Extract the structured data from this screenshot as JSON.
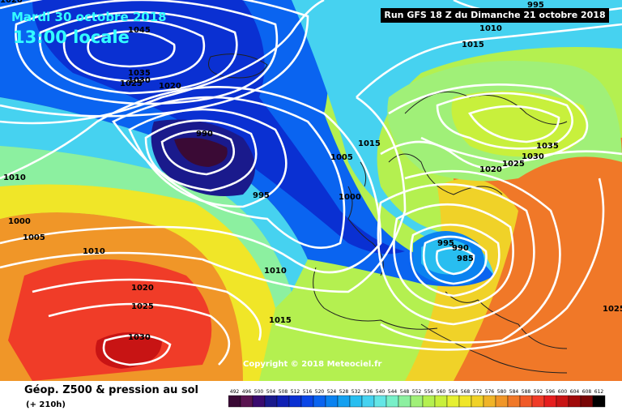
{
  "header": {
    "date": "Mardi 30 octobre 2018",
    "time": "13:00 locale",
    "run": "Run GFS 18 Z du Dimanche 21 octobre 2018"
  },
  "copyright": "Copyright © 2018 Meteociel.fr",
  "legend": {
    "title": "Géop. Z500 & pression au sol",
    "forecast": "(+ 210h)",
    "scale_values": [
      "492",
      "496",
      "500",
      "504",
      "508",
      "512",
      "516",
      "520",
      "524",
      "528",
      "532",
      "536",
      "540",
      "544",
      "548",
      "552",
      "556",
      "560",
      "564",
      "568",
      "572",
      "576",
      "580",
      "584",
      "588",
      "592",
      "596",
      "600",
      "604",
      "608",
      "612"
    ],
    "scale_colors": [
      "#3a0a35",
      "#5a1450",
      "#3a0a6e",
      "#1a1a8c",
      "#1020b4",
      "#0a30d2",
      "#0a46e6",
      "#0a64f0",
      "#0a82f0",
      "#14a0f0",
      "#28bef0",
      "#46d2f0",
      "#64e6e6",
      "#78f0c8",
      "#8cf0a0",
      "#a0f078",
      "#b4f050",
      "#c8f03c",
      "#e6f032",
      "#f0e628",
      "#f0d228",
      "#f0b428",
      "#f09628",
      "#f07828",
      "#f05a28",
      "#f03c28",
      "#e61e1e",
      "#c81414",
      "#a00a0a",
      "#780505",
      "#000000"
    ]
  },
  "pressure_labels": [
    {
      "text": "1045"
    },
    {
      "text": "1035"
    },
    {
      "text": "1030"
    },
    {
      "text": "1025"
    },
    {
      "text": "1020"
    },
    {
      "text": "990"
    },
    {
      "text": "995"
    },
    {
      "text": "1005"
    },
    {
      "text": "1015"
    },
    {
      "text": "1000"
    },
    {
      "text": "1010"
    },
    {
      "text": "1000"
    },
    {
      "text": "1005"
    },
    {
      "text": "1010"
    },
    {
      "text": "1010"
    },
    {
      "text": "1020"
    },
    {
      "text": "1025"
    },
    {
      "text": "1030"
    },
    {
      "text": "1015"
    },
    {
      "text": "995"
    },
    {
      "text": "990"
    },
    {
      "text": "985"
    },
    {
      "text": "1010"
    },
    {
      "text": "1015"
    },
    {
      "text": "995"
    },
    {
      "text": "1035"
    },
    {
      "text": "1030"
    },
    {
      "text": "1025"
    },
    {
      "text": "1020"
    },
    {
      "text": "1020"
    },
    {
      "text": "1025"
    }
  ],
  "colors": {
    "title": "#33ffff",
    "isobar": "#ffffff"
  }
}
